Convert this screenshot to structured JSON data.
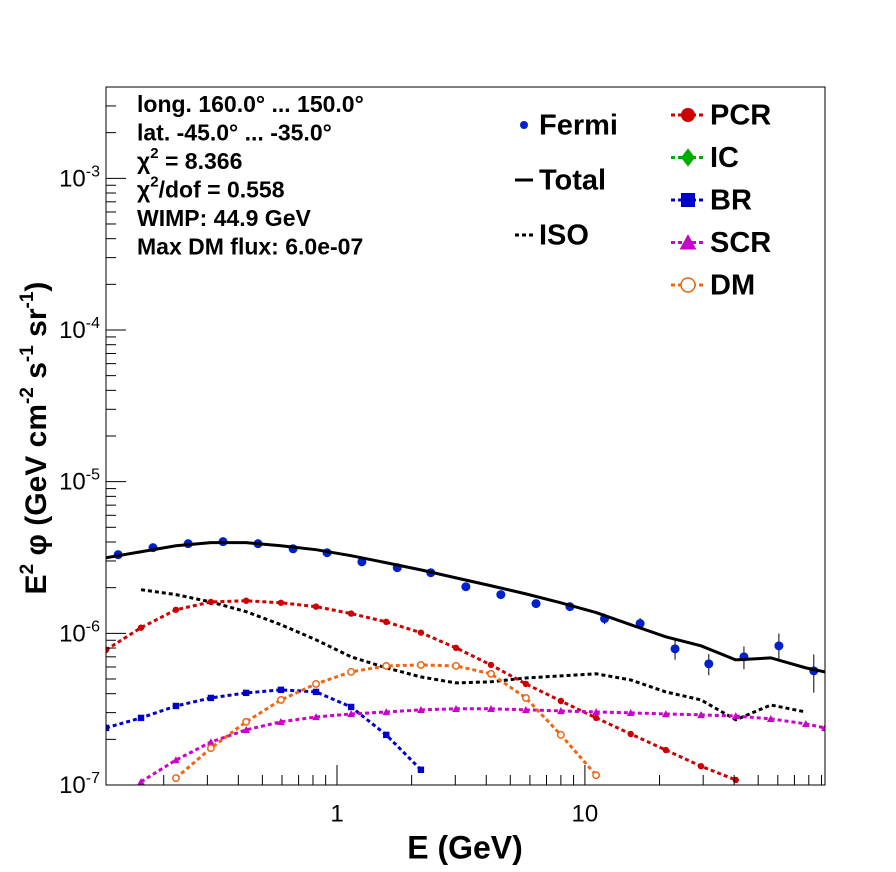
{
  "chart_data": {
    "type": "line",
    "log_x": true,
    "log_y": true,
    "xlim": [
      0.117,
      93
    ],
    "ylim": [
      1e-07,
      0.004
    ],
    "xticks": [
      1,
      10
    ],
    "yticks": [
      {
        "value": 1e-07,
        "label": "10",
        "exponent": "-7"
      },
      {
        "value": 1e-06,
        "label": "10",
        "exponent": "-6"
      },
      {
        "value": 1e-05,
        "label": "10",
        "exponent": "-5"
      },
      {
        "value": 0.0001,
        "label": "10",
        "exponent": "-4"
      },
      {
        "value": 0.001,
        "label": "10",
        "exponent": "-3"
      }
    ],
    "x_label": "E (GeV)",
    "y_label": [
      {
        "text": "E"
      },
      {
        "sup": "2"
      },
      {
        "text": " φ (GeV cm"
      },
      {
        "sup": "-2"
      },
      {
        "text": " s"
      },
      {
        "sup": "-1"
      },
      {
        "text": " sr"
      },
      {
        "sup": "-1"
      },
      {
        "text": ")"
      }
    ],
    "annotations": [
      [
        {
          "text": "long. 160.0° ... 150.0°"
        }
      ],
      [
        {
          "text": "lat. -45.0° ... -35.0°"
        }
      ],
      [
        {
          "text": "χ"
        },
        {
          "sup": "2"
        },
        {
          "text": " = 8.366"
        }
      ],
      [
        {
          "text": "χ"
        },
        {
          "sup": "2"
        },
        {
          "text": "/dof = 0.558"
        }
      ],
      [
        {
          "text": "WIMP: 44.9 GeV"
        }
      ],
      [
        {
          "text": "Max DM flux: 6.0e-07"
        }
      ]
    ],
    "x": [
      0.117,
      0.162,
      0.224,
      0.31,
      0.43,
      0.594,
      0.823,
      1.14,
      1.58,
      2.18,
      3.02,
      4.18,
      5.78,
      8.0,
      11.1,
      15.3,
      21.2,
      29.4,
      40.6,
      56.2,
      77.8,
      92.9
    ],
    "series": [
      {
        "name": "Fermi",
        "color": "#0022cc",
        "line": "none",
        "marker": "circle",
        "x": [
          0.131,
          0.181,
          0.251,
          0.347,
          0.48,
          0.665,
          0.912,
          1.26,
          1.75,
          2.39,
          3.31,
          4.58,
          6.35,
          8.7,
          12,
          16.7,
          23.1,
          31.6,
          43.8,
          60.6,
          83.8
        ],
        "values": [
          3.3e-06,
          3.67e-06,
          3.9e-06,
          4.02e-06,
          3.9e-06,
          3.61e-06,
          3.4e-06,
          2.96e-06,
          2.71e-06,
          2.51e-06,
          2.03e-06,
          1.8e-06,
          1.57e-06,
          1.5e-06,
          1.25e-06,
          1.16e-06,
          7.9e-07,
          6.29e-07,
          7e-07,
          8.27e-07,
          5.66e-07
        ],
        "errors": [
          1e-07,
          1e-07,
          1e-07,
          1e-07,
          1e-07,
          1e-07,
          1e-07,
          8e-08,
          8e-08,
          8e-08,
          6e-08,
          6e-08,
          6e-08,
          8e-08,
          1e-07,
          1e-07,
          1.2e-07,
          1e-07,
          1.2e-07,
          1.7e-07,
          1.6e-07
        ]
      },
      {
        "name": "Total",
        "color": "#000000",
        "line": "solid",
        "marker": "none",
        "values": [
          3.15e-06,
          3.45e-06,
          3.78e-06,
          3.96e-06,
          3.96e-06,
          3.78e-06,
          3.56e-06,
          3.25e-06,
          2.92e-06,
          2.62e-06,
          2.32e-06,
          2.06e-06,
          1.82e-06,
          1.59e-06,
          1.37e-06,
          1.14e-06,
          9.48e-07,
          8.27e-07,
          6.68e-07,
          6.89e-07,
          5.92e-07,
          5.57e-07
        ]
      },
      {
        "name": "ISO",
        "color": "#000000",
        "line": "dotted",
        "marker": "none",
        "values": [
          null,
          1.94e-06,
          1.8e-06,
          1.61e-06,
          1.39e-06,
          1.14e-06,
          9.06e-07,
          7e-07,
          5.92e-07,
          5.16e-07,
          4.71e-07,
          4.79e-07,
          5.08e-07,
          5.24e-07,
          5.41e-07,
          4.93e-07,
          4.11e-07,
          3.64e-07,
          2.69e-07,
          3.37e-07,
          3.03e-07,
          null
        ]
      },
      {
        "name": "PCR",
        "color": "#cc0000",
        "line": "dotted",
        "marker": "circle",
        "values": [
          7.78e-07,
          1.09e-06,
          1.43e-06,
          1.61e-06,
          1.64e-06,
          1.59e-06,
          1.5e-06,
          1.35e-06,
          1.19e-06,
          1.01e-06,
          8.02e-07,
          6.19e-07,
          4.64e-07,
          3.58e-07,
          2.77e-07,
          2.17e-07,
          1.7e-07,
          1.33e-07,
          1.08e-07,
          null,
          null,
          null
        ]
      },
      {
        "name": "IC",
        "color": "#00aa00",
        "line": "dotted",
        "marker": "diamond",
        "values": [
          null,
          null,
          null,
          null,
          null,
          null,
          null,
          null,
          null,
          null,
          null,
          null,
          null,
          null,
          null,
          null,
          null,
          null,
          null,
          null,
          null,
          null
        ]
      },
      {
        "name": "BR",
        "color": "#0000cc",
        "line": "dotted",
        "marker": "square",
        "values": [
          2.38e-07,
          2.77e-07,
          3.32e-07,
          3.75e-07,
          4.05e-07,
          4.24e-07,
          4.11e-07,
          3.27e-07,
          2.14e-07,
          1.26e-07,
          null,
          null,
          null,
          null,
          null,
          null,
          null,
          null,
          null,
          null,
          null,
          null
        ]
      },
      {
        "name": "SCR",
        "color": "#cc00cc",
        "line": "dotted",
        "marker": "triangle",
        "values": [
          null,
          1.05e-07,
          1.46e-07,
          1.92e-07,
          2.31e-07,
          2.61e-07,
          2.81e-07,
          2.94e-07,
          3.03e-07,
          3.13e-07,
          3.18e-07,
          3.18e-07,
          3.13e-07,
          3.08e-07,
          3.03e-07,
          2.99e-07,
          2.94e-07,
          2.9e-07,
          2.85e-07,
          2.73e-07,
          2.53e-07,
          2.38e-07
        ]
      },
      {
        "name": "DM",
        "color": "#ee6611",
        "line": "dotted",
        "marker": "open-circle",
        "values": [
          null,
          null,
          1.11e-07,
          1.75e-07,
          2.61e-07,
          3.64e-07,
          4.64e-07,
          5.57e-07,
          6.1e-07,
          6.19e-07,
          6.1e-07,
          5.41e-07,
          3.75e-07,
          2.14e-07,
          1.16e-07,
          null,
          null,
          null,
          null,
          null,
          null,
          null
        ]
      }
    ]
  }
}
